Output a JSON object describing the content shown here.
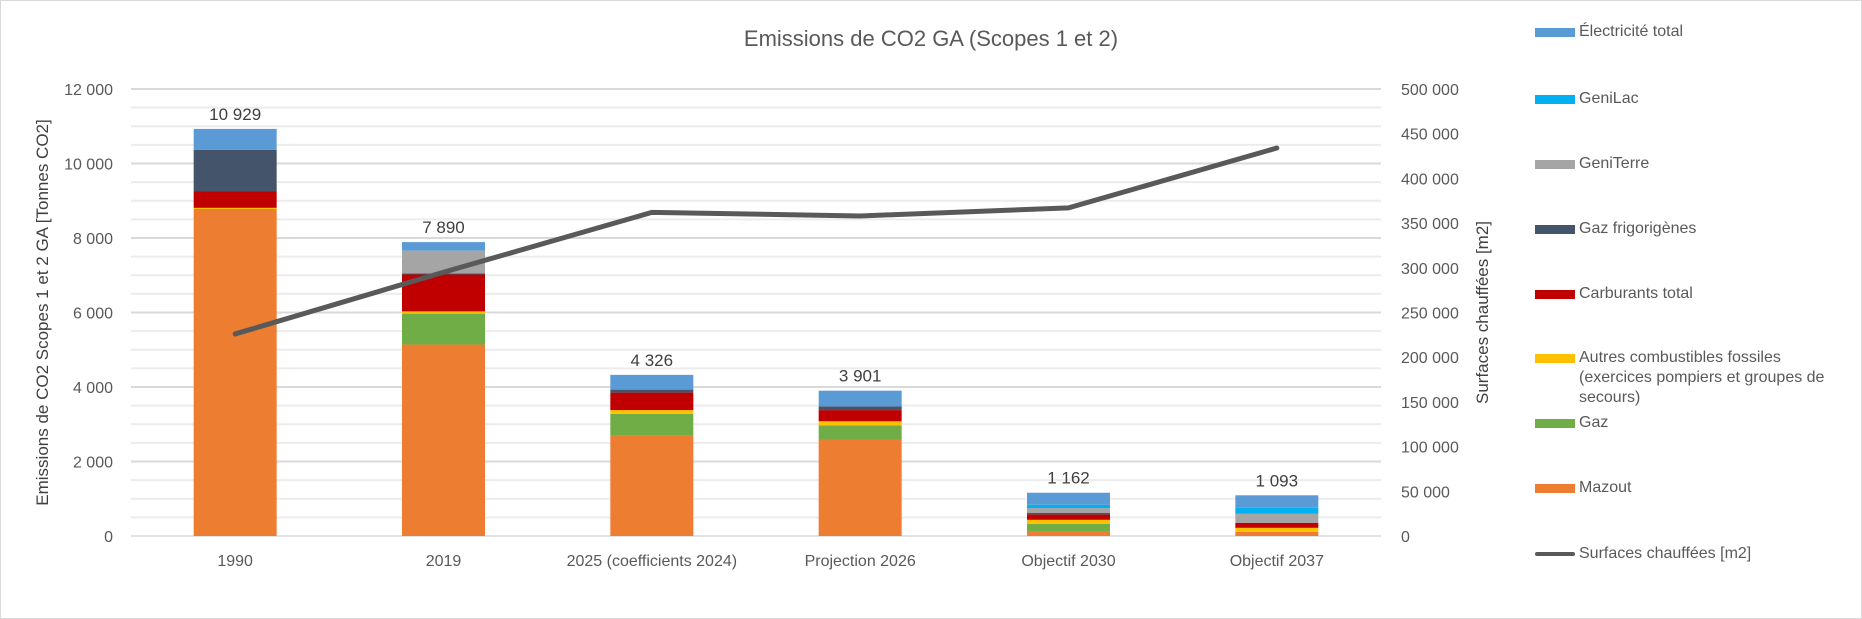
{
  "chart_data": {
    "type": "bar",
    "stacked": true,
    "title": "Emissions de CO2 GA (Scopes 1 et 2)",
    "ylabel": "Emissions de CO2 Scopes 1 et 2 GA [Tonnes CO2]",
    "y2label": "Surfaces chauffées [m2]",
    "ylim": [
      0,
      12000
    ],
    "y2lim": [
      0,
      500000
    ],
    "yticks": [
      "0",
      "2 000",
      "4 000",
      "6 000",
      "8 000",
      "10 000",
      "12 000"
    ],
    "y2ticks": [
      "0",
      "50 000",
      "100 000",
      "150 000",
      "200 000",
      "250 000",
      "300 000",
      "350 000",
      "400 000",
      "450 000",
      "500 000"
    ],
    "grid": true,
    "legend_position": "right",
    "categories": [
      "1990",
      "2019",
      "2025 (coefficients 2024)",
      "Projection 2026",
      "Objectif 2030",
      "Objectif 2037"
    ],
    "totals": [
      "10 929",
      "7 890",
      "4 326",
      "3 901",
      "1 162",
      "1 093"
    ],
    "series": [
      {
        "name": "Mazout",
        "color": "#ED7D31",
        "values": [
          8780,
          5140,
          2710,
          2590,
          110,
          110
        ]
      },
      {
        "name": "Gaz",
        "color": "#70AD47",
        "values": [
          0,
          830,
          570,
          380,
          215,
          0
        ]
      },
      {
        "name": "Autres combustibles fossiles (exercices pompiers et groupes de secours)",
        "color": "#FFC000",
        "values": [
          30,
          60,
          100,
          110,
          110,
          110
        ]
      },
      {
        "name": "Carburants total",
        "color": "#C00000",
        "values": [
          450,
          990,
          470,
          300,
          145,
          135
        ]
      },
      {
        "name": "Gaz frigorigènes",
        "color": "#44546A",
        "values": [
          1110,
          30,
          80,
          100,
          45,
          0
        ]
      },
      {
        "name": "GeniTerre",
        "color": "#A5A5A5",
        "values": [
          0,
          610,
          0,
          0,
          125,
          240
        ]
      },
      {
        "name": "GeniLac",
        "color": "#00B0F0",
        "values": [
          0,
          0,
          0,
          0,
          90,
          160
        ]
      },
      {
        "name": "Électricité total",
        "color": "#5B9BD5",
        "values": [
          559,
          230,
          396,
          421,
          322,
          338
        ]
      }
    ],
    "line_series": {
      "name": "Surfaces chauffées [m2]",
      "color": "#595959",
      "axis": "right",
      "values": [
        226000,
        295000,
        362000,
        358000,
        367000,
        434000
      ]
    }
  }
}
